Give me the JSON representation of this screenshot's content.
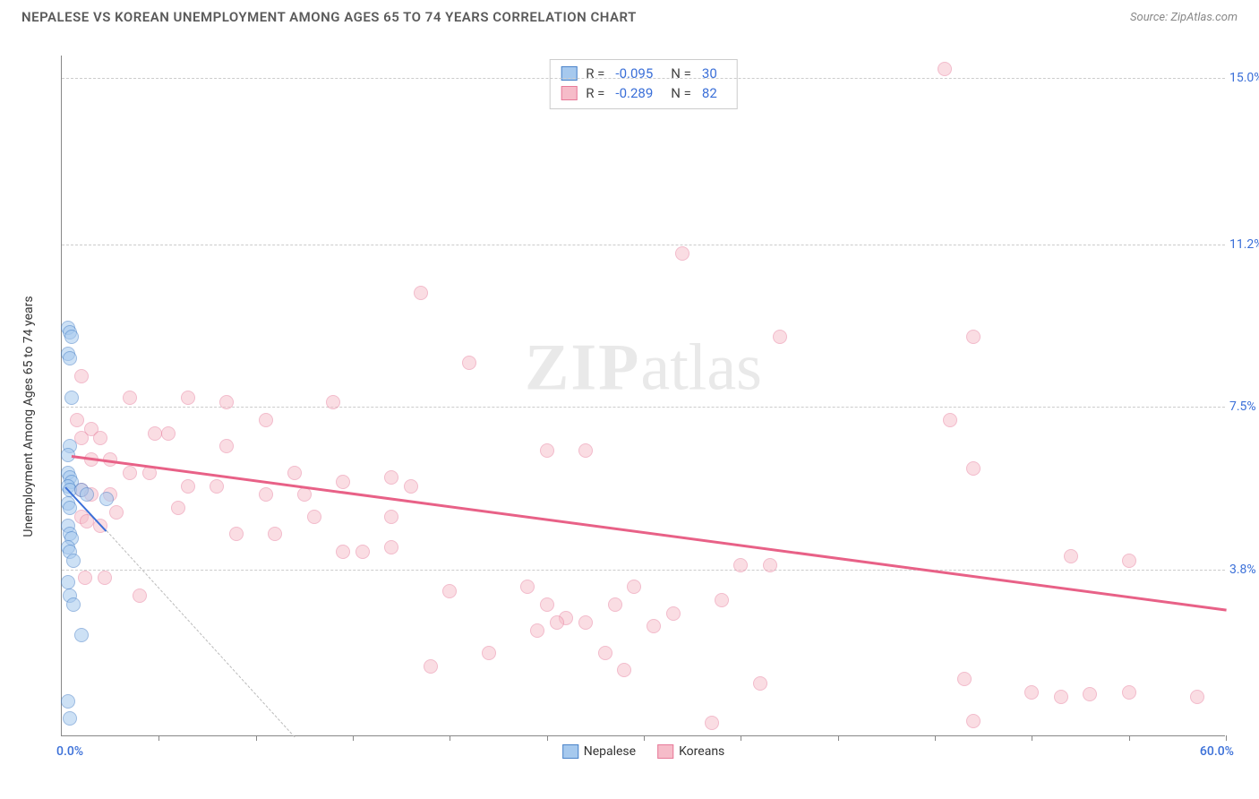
{
  "header": {
    "title": "NEPALESE VS KOREAN UNEMPLOYMENT AMONG AGES 65 TO 74 YEARS CORRELATION CHART",
    "source_prefix": "Source: ",
    "source_name": "ZipAtlas.com"
  },
  "watermark": {
    "zip": "ZIP",
    "atlas": "atlas"
  },
  "chart": {
    "type": "scatter",
    "y_axis_label": "Unemployment Among Ages 65 to 74 years",
    "xlim": [
      0,
      60
    ],
    "ylim": [
      0,
      15.5
    ],
    "x_range": {
      "min_label": "0.0%",
      "max_label": "60.0%",
      "label_color": "#3a6fd8"
    },
    "x_ticks": [
      5,
      10,
      15,
      20,
      25,
      30,
      35,
      40,
      45,
      50,
      55,
      60
    ],
    "y_ticks": [
      {
        "y": 15.0,
        "label": "15.0%",
        "color": "#3a6fd8"
      },
      {
        "y": 11.2,
        "label": "11.2%",
        "color": "#3a6fd8"
      },
      {
        "y": 7.5,
        "label": "7.5%",
        "color": "#3a6fd8"
      },
      {
        "y": 3.8,
        "label": "3.8%",
        "color": "#3a6fd8"
      }
    ],
    "grid_color": "#cccccc",
    "background_color": "#ffffff",
    "point_radius": 8,
    "point_border_width": 1.2,
    "series": {
      "nepalese": {
        "label": "Nepalese",
        "point_fill": "#a6c9ee",
        "point_fill_opacity": 0.55,
        "point_stroke": "#4a83c9",
        "swatch_fill": "#a6c9ee",
        "swatch_stroke": "#4a83c9",
        "stats": {
          "R_label": "R =",
          "R": "-0.095",
          "N_label": "N =",
          "N": "30",
          "value_color": "#3a6fd8"
        },
        "trend": {
          "x1": 0.2,
          "y1": 5.7,
          "x2": 2.3,
          "y2": 4.7,
          "color": "#3a6fd8",
          "width": 2
        },
        "extrapolate": {
          "x1": 2.3,
          "y1": 4.7,
          "x2": 12.0,
          "y2": 0.0,
          "color": "#bbbbbb"
        },
        "points": [
          [
            0.3,
            9.3
          ],
          [
            0.4,
            9.2
          ],
          [
            0.5,
            9.1
          ],
          [
            0.3,
            8.7
          ],
          [
            0.4,
            8.6
          ],
          [
            0.5,
            7.7
          ],
          [
            0.4,
            6.6
          ],
          [
            0.3,
            6.4
          ],
          [
            0.3,
            6.0
          ],
          [
            0.4,
            5.9
          ],
          [
            0.5,
            5.8
          ],
          [
            0.3,
            5.7
          ],
          [
            0.4,
            5.6
          ],
          [
            1.0,
            5.6
          ],
          [
            1.3,
            5.5
          ],
          [
            0.3,
            5.3
          ],
          [
            0.4,
            5.2
          ],
          [
            0.3,
            4.8
          ],
          [
            0.4,
            4.6
          ],
          [
            0.5,
            4.5
          ],
          [
            0.3,
            4.3
          ],
          [
            0.4,
            4.2
          ],
          [
            0.6,
            4.0
          ],
          [
            0.3,
            3.5
          ],
          [
            0.4,
            3.2
          ],
          [
            0.6,
            3.0
          ],
          [
            1.0,
            2.3
          ],
          [
            0.3,
            0.8
          ],
          [
            0.4,
            0.4
          ],
          [
            2.3,
            5.4
          ]
        ]
      },
      "koreans": {
        "label": "Koreans",
        "point_fill": "#f6bcc9",
        "point_fill_opacity": 0.5,
        "point_stroke": "#e77a99",
        "swatch_fill": "#f6bcc9",
        "swatch_stroke": "#e77a99",
        "stats": {
          "R_label": "R =",
          "R": "-0.289",
          "N_label": "N =",
          "N": "82",
          "value_color": "#3a6fd8"
        },
        "trend": {
          "x1": 0.5,
          "y1": 6.4,
          "x2": 60.0,
          "y2": 2.9,
          "color": "#e86187",
          "width": 2.5
        },
        "points": [
          [
            45.5,
            15.2
          ],
          [
            32.0,
            11.0
          ],
          [
            18.5,
            10.1
          ],
          [
            37.0,
            9.1
          ],
          [
            47.0,
            9.1
          ],
          [
            21.0,
            8.5
          ],
          [
            1.0,
            8.2
          ],
          [
            0.8,
            7.2
          ],
          [
            1.5,
            7.0
          ],
          [
            3.5,
            7.7
          ],
          [
            6.5,
            7.7
          ],
          [
            8.5,
            7.6
          ],
          [
            10.5,
            7.2
          ],
          [
            14.0,
            7.6
          ],
          [
            45.8,
            7.2
          ],
          [
            1.0,
            6.8
          ],
          [
            2.0,
            6.8
          ],
          [
            4.8,
            6.9
          ],
          [
            5.5,
            6.9
          ],
          [
            8.5,
            6.6
          ],
          [
            25.0,
            6.5
          ],
          [
            27.0,
            6.5
          ],
          [
            1.5,
            6.3
          ],
          [
            2.5,
            6.3
          ],
          [
            3.5,
            6.0
          ],
          [
            4.5,
            6.0
          ],
          [
            6.5,
            5.7
          ],
          [
            8.0,
            5.7
          ],
          [
            10.5,
            5.5
          ],
          [
            12.5,
            5.5
          ],
          [
            14.5,
            5.8
          ],
          [
            17.0,
            5.9
          ],
          [
            18.0,
            5.7
          ],
          [
            47.0,
            6.1
          ],
          [
            1.0,
            5.6
          ],
          [
            1.5,
            5.5
          ],
          [
            2.5,
            5.5
          ],
          [
            6.0,
            5.2
          ],
          [
            13.0,
            5.0
          ],
          [
            17.0,
            5.0
          ],
          [
            9.0,
            4.6
          ],
          [
            11.0,
            4.6
          ],
          [
            14.5,
            4.2
          ],
          [
            15.5,
            4.2
          ],
          [
            17.0,
            4.3
          ],
          [
            35.0,
            3.9
          ],
          [
            36.5,
            3.9
          ],
          [
            52.0,
            4.1
          ],
          [
            55.0,
            4.0
          ],
          [
            1.2,
            3.6
          ],
          [
            2.2,
            3.6
          ],
          [
            4.0,
            3.2
          ],
          [
            20.0,
            3.3
          ],
          [
            24.0,
            3.4
          ],
          [
            25.0,
            3.0
          ],
          [
            26.0,
            2.7
          ],
          [
            27.0,
            2.6
          ],
          [
            28.5,
            3.0
          ],
          [
            29.5,
            3.4
          ],
          [
            30.5,
            2.5
          ],
          [
            24.5,
            2.4
          ],
          [
            25.5,
            2.6
          ],
          [
            31.5,
            2.8
          ],
          [
            34.0,
            3.1
          ],
          [
            46.5,
            1.3
          ],
          [
            50.0,
            1.0
          ],
          [
            51.5,
            0.9
          ],
          [
            53.0,
            0.95
          ],
          [
            55.0,
            1.0
          ],
          [
            58.5,
            0.9
          ],
          [
            19.0,
            1.6
          ],
          [
            22.0,
            1.9
          ],
          [
            28.0,
            1.9
          ],
          [
            29.0,
            1.5
          ],
          [
            36.0,
            1.2
          ],
          [
            33.5,
            0.3
          ],
          [
            47.0,
            0.35
          ],
          [
            1.0,
            5.0
          ],
          [
            1.3,
            4.9
          ],
          [
            2.0,
            4.8
          ],
          [
            2.8,
            5.1
          ],
          [
            12.0,
            6.0
          ]
        ]
      }
    }
  }
}
